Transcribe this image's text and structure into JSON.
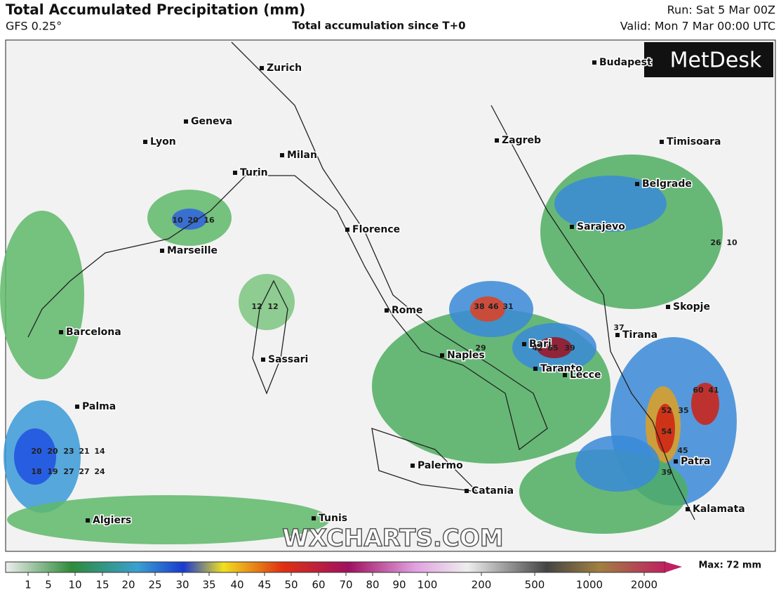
{
  "header": {
    "title": "Total Accumulated Precipitation (mm)",
    "model": "GFS 0.25°",
    "subtitle": "Total accumulation since T+0",
    "run": "Run: Sat 5 Mar 00Z",
    "valid": "Valid: Mon 7 Mar 00:00 UTC"
  },
  "logo": "MetDesk",
  "watermark": "WXCHARTS.COM",
  "cities": [
    "Zurich",
    "Budapest",
    "Geneva",
    "Lyon",
    "Milan",
    "Turin",
    "Zagreb",
    "Timisoara",
    "Belgrade",
    "Marseille",
    "Florence",
    "Sarajevo",
    "Rome",
    "Skopje",
    "Barcelona",
    "Tirana",
    "Bari",
    "Naples",
    "Taranto",
    "Lecce",
    "Sassari",
    "Palma",
    "Palermo",
    "Catania",
    "Patra",
    "Kalamata",
    "Algiers",
    "Tunis"
  ],
  "grid_values": [
    10,
    20,
    16,
    12,
    12,
    38,
    46,
    31,
    42,
    65,
    39,
    37,
    60,
    41,
    52,
    35,
    54,
    45,
    39,
    20,
    20,
    23,
    21,
    14,
    18,
    19,
    27,
    27,
    24,
    29,
    26,
    10
  ],
  "legend": {
    "ticks": [
      1,
      5,
      10,
      15,
      20,
      25,
      30,
      35,
      40,
      45,
      50,
      60,
      70,
      80,
      90,
      100,
      200,
      500,
      1000,
      2000
    ],
    "max_label": "Max: 72 mm"
  }
}
